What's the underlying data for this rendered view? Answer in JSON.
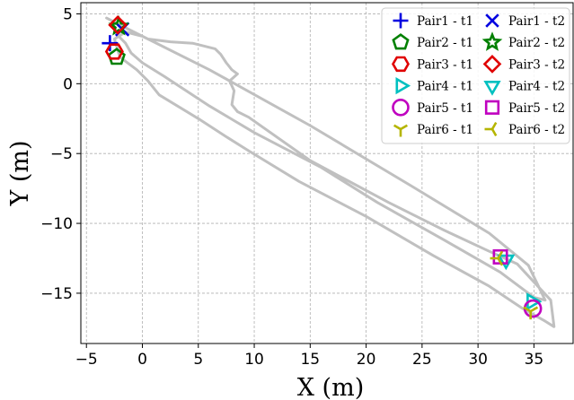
{
  "chart_data": {
    "type": "scatter",
    "title": "",
    "xlabel": "X (m)",
    "ylabel": "Y (m)",
    "xlim": [
      -5.5,
      38.5
    ],
    "ylim": [
      -18.6,
      5.8
    ],
    "xticks": [
      -5,
      0,
      5,
      10,
      15,
      20,
      25,
      30,
      35
    ],
    "yticks": [
      5,
      0,
      -5,
      -10,
      -15
    ],
    "xtick_labels": [
      "−5",
      "0",
      "5",
      "10",
      "15",
      "20",
      "25",
      "30",
      "35"
    ],
    "ytick_labels": [
      "5",
      "0",
      "−5",
      "−10",
      "−15"
    ],
    "grid": true,
    "legend_position": "top-right",
    "trajectory": {
      "color": "#c0c0c0",
      "x": [
        -3.2,
        -1.5,
        0.5,
        2.5,
        4.5,
        6.5,
        7.0,
        7.5,
        8.0,
        8.5,
        7.8,
        8.2,
        8.0,
        8.5,
        9.5,
        15.0,
        22.0,
        27.0,
        31.0,
        33.5,
        36.5,
        36.8,
        36.0,
        34.0,
        31.0,
        26.0,
        20.0,
        14.0,
        9.5,
        7.5,
        5.0,
        1.5,
        0.5,
        -0.5,
        -1.5,
        -2.0,
        -2.2,
        -2.5,
        -1.5,
        0.0,
        6.0,
        15.0,
        24.0,
        31.0,
        34.5,
        36.0,
        35.0,
        32.0,
        27.0,
        21.0,
        16.0,
        10.0,
        6.0,
        2.0,
        0.0,
        -1.0,
        -1.5,
        -2.0
      ],
      "y": [
        4.7,
        4.0,
        3.2,
        3.0,
        2.9,
        2.5,
        2.1,
        1.5,
        1.0,
        0.7,
        0.2,
        -0.5,
        -1.5,
        -2.0,
        -2.4,
        -5.5,
        -8.5,
        -10.5,
        -12.0,
        -12.9,
        -15.5,
        -17.4,
        -17.0,
        -16.1,
        -14.5,
        -12.3,
        -9.5,
        -7.0,
        -4.8,
        -3.8,
        -2.5,
        -0.8,
        0.2,
        1.0,
        1.6,
        1.9,
        2.4,
        3.2,
        3.7,
        3.4,
        1.0,
        -3.0,
        -7.3,
        -10.7,
        -13.0,
        -15.5,
        -15.3,
        -13.5,
        -11.2,
        -8.5,
        -6.0,
        -3.5,
        -1.6,
        0.5,
        1.5,
        2.2,
        2.9,
        3.3
      ]
    },
    "series": [
      {
        "name": "Pair1 - t1",
        "marker": "plus",
        "color": "#0000e0",
        "x": -2.9,
        "y": 2.9
      },
      {
        "name": "Pair1 - t2",
        "marker": "x",
        "color": "#0000e0",
        "x": -1.8,
        "y": 3.9
      },
      {
        "name": "Pair2 - t1",
        "marker": "pentagon",
        "color": "#008000",
        "x": -2.3,
        "y": 1.9
      },
      {
        "name": "Pair2 - t2",
        "marker": "star",
        "color": "#008000",
        "x": -2.1,
        "y": 4.1
      },
      {
        "name": "Pair3 - t1",
        "marker": "hexagon",
        "color": "#e00000",
        "x": -2.5,
        "y": 2.3
      },
      {
        "name": "Pair3 - t2",
        "marker": "diamond",
        "color": "#e00000",
        "x": -2.2,
        "y": 4.2
      },
      {
        "name": "Pair4 - t1",
        "marker": "triangle-right",
        "color": "#00c0c0",
        "x": 34.8,
        "y": -15.6
      },
      {
        "name": "Pair4 - t2",
        "marker": "triangle-down",
        "color": "#00c0c0",
        "x": 32.5,
        "y": -12.6
      },
      {
        "name": "Pair5 - t1",
        "marker": "circle",
        "color": "#c000c0",
        "x": 34.9,
        "y": -16.1
      },
      {
        "name": "Pair5 - t2",
        "marker": "square",
        "color": "#c000c0",
        "x": 32.0,
        "y": -12.4
      },
      {
        "name": "Pair6 - t1",
        "marker": "tri-down",
        "color": "#b5b500",
        "x": 34.7,
        "y": -16.3
      },
      {
        "name": "Pair6 - t2",
        "marker": "tri-left",
        "color": "#b5b500",
        "x": 31.8,
        "y": -12.5
      }
    ]
  }
}
